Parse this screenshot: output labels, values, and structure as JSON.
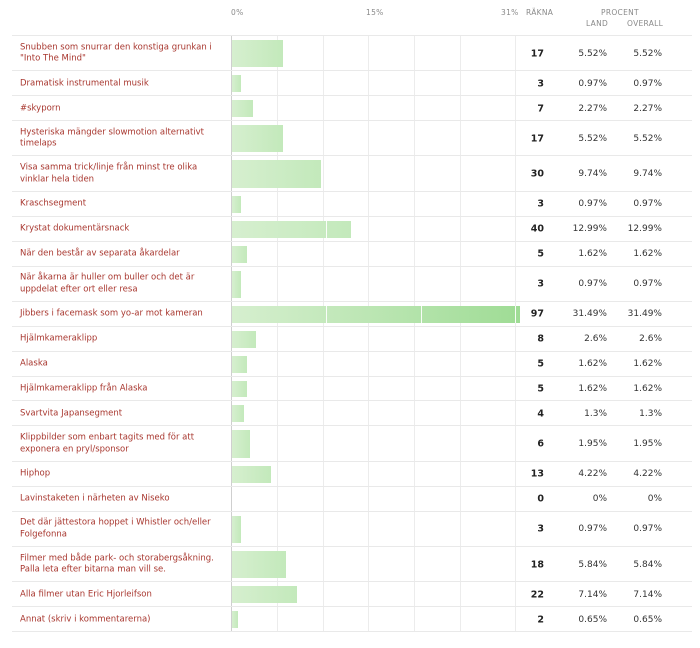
{
  "chart_data": {
    "type": "bar",
    "orientation": "horizontal",
    "xlim": [
      0,
      31
    ],
    "tick_labels": [
      "0%",
      "15%",
      "31%"
    ],
    "headers": {
      "count": "RÄKNA",
      "percent": "PROCENT",
      "land": "LAND",
      "overall": "OVERALL"
    },
    "rows": [
      {
        "label": "Snubben som snurrar den konstiga grunkan i \"Into The Mind\"",
        "count": "17",
        "land": "5.52%",
        "overall": "5.52%",
        "value": 5.52
      },
      {
        "label": "Dramatisk instrumental musik",
        "count": "3",
        "land": "0.97%",
        "overall": "0.97%",
        "value": 0.97
      },
      {
        "label": "#skyporn",
        "count": "7",
        "land": "2.27%",
        "overall": "2.27%",
        "value": 2.27
      },
      {
        "label": "Hysteriska mängder slowmotion alternativt timelaps",
        "count": "17",
        "land": "5.52%",
        "overall": "5.52%",
        "value": 5.52
      },
      {
        "label": "Visa samma trick/linje från minst tre olika vinklar hela tiden",
        "count": "30",
        "land": "9.74%",
        "overall": "9.74%",
        "value": 9.74
      },
      {
        "label": "Kraschsegment",
        "count": "3",
        "land": "0.97%",
        "overall": "0.97%",
        "value": 0.97
      },
      {
        "label": "Krystat dokumentärsnack",
        "count": "40",
        "land": "12.99%",
        "overall": "12.99%",
        "value": 12.99
      },
      {
        "label": "När den består av separata åkardelar",
        "count": "5",
        "land": "1.62%",
        "overall": "1.62%",
        "value": 1.62
      },
      {
        "label": "När åkarna är huller om buller och det är uppdelat efter ort eller resa",
        "count": "3",
        "land": "0.97%",
        "overall": "0.97%",
        "value": 0.97
      },
      {
        "label": "Jibbers i facemask som yo-ar mot kameran",
        "count": "97",
        "land": "31.49%",
        "overall": "31.49%",
        "value": 31.49
      },
      {
        "label": "Hjälmkameraklipp",
        "count": "8",
        "land": "2.6%",
        "overall": "2.6%",
        "value": 2.6
      },
      {
        "label": "Alaska",
        "count": "5",
        "land": "1.62%",
        "overall": "1.62%",
        "value": 1.62
      },
      {
        "label": "Hjälmkameraklipp från Alaska",
        "count": "5",
        "land": "1.62%",
        "overall": "1.62%",
        "value": 1.62
      },
      {
        "label": "Svartvita Japansegment",
        "count": "4",
        "land": "1.3%",
        "overall": "1.3%",
        "value": 1.3
      },
      {
        "label": "Klippbilder som enbart tagits med för att exponera en pryl/sponsor",
        "count": "6",
        "land": "1.95%",
        "overall": "1.95%",
        "value": 1.95
      },
      {
        "label": "Hiphop",
        "count": "13",
        "land": "4.22%",
        "overall": "4.22%",
        "value": 4.22
      },
      {
        "label": "Lavinstaketen i närheten av Niseko",
        "count": "0",
        "land": "0%",
        "overall": "0%",
        "value": 0
      },
      {
        "label": "Det där jättestora hoppet i Whistler och/eller Folgefonna",
        "count": "3",
        "land": "0.97%",
        "overall": "0.97%",
        "value": 0.97
      },
      {
        "label": "Filmer med både park- och storabergsåkning. Palla leta efter bitarna man vill se.",
        "count": "18",
        "land": "5.84%",
        "overall": "5.84%",
        "value": 5.84
      },
      {
        "label": "Alla filmer utan Eric Hjorleifson",
        "count": "22",
        "land": "7.14%",
        "overall": "7.14%",
        "value": 7.14
      },
      {
        "label": "Annat (skriv i kommentarerna)",
        "count": "2",
        "land": "0.65%",
        "overall": "0.65%",
        "value": 0.65
      }
    ],
    "colors": {
      "bar_light": "#d6efcf",
      "bar_dark": "#9fdc95",
      "label": "#a8372f"
    }
  }
}
